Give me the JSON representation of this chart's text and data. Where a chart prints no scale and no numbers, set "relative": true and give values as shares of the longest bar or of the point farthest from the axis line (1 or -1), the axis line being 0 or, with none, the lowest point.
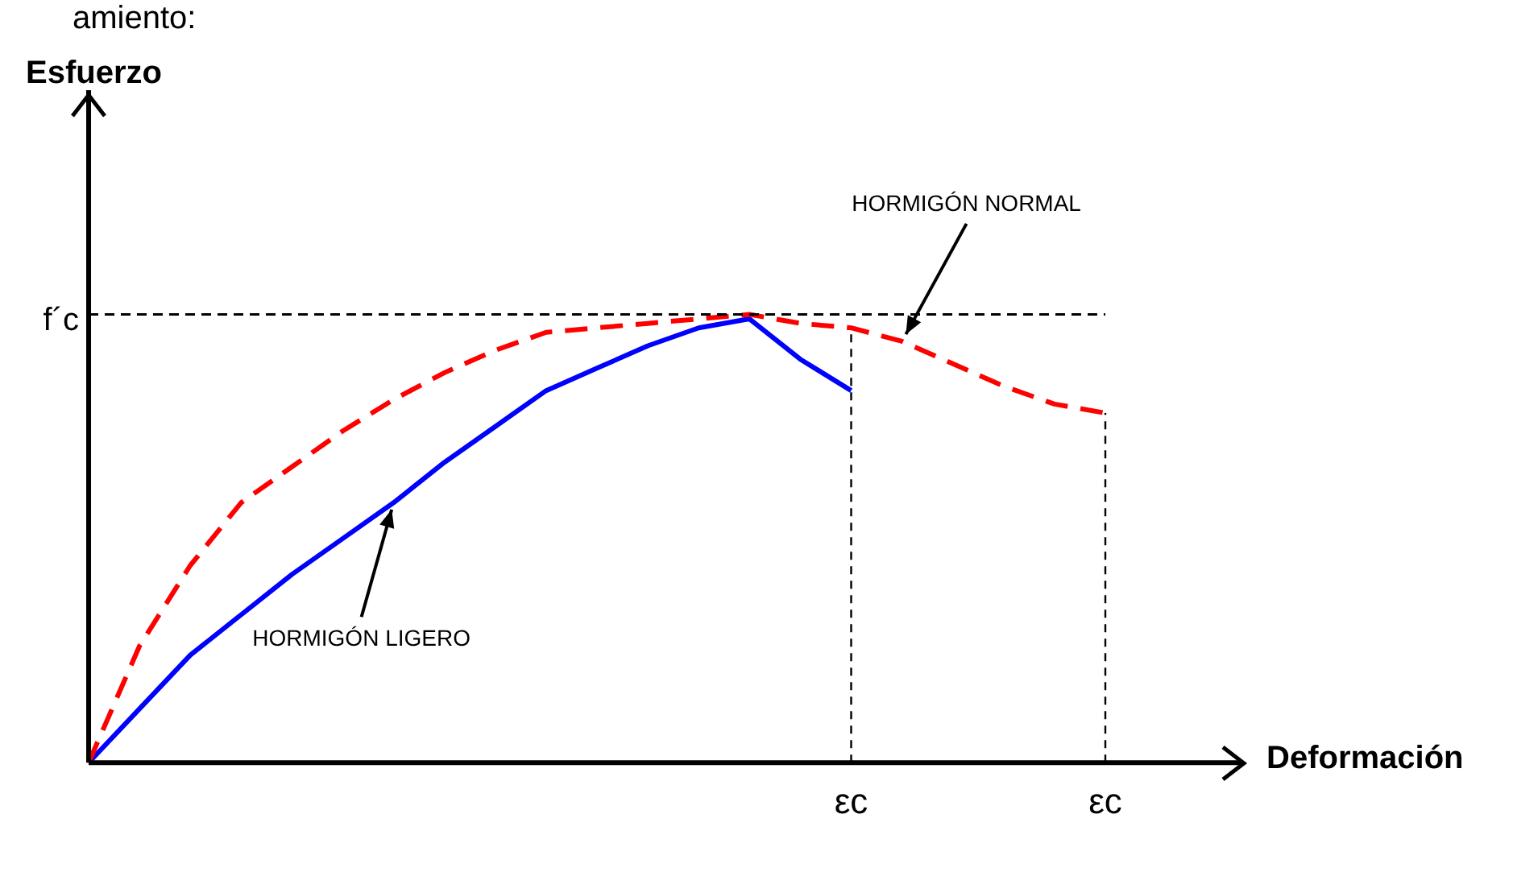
{
  "chart_data": {
    "type": "line",
    "relative": true,
    "xlabel": "Deformación",
    "annotations": [
      "amiento:",
      "Esfuerzo"
    ],
    "categories": [
      null,
      null,
      null,
      null,
      null,
      null,
      null,
      null,
      null,
      null,
      null,
      null,
      null,
      null,
      null,
      "εc",
      null,
      null,
      null,
      null,
      "εc"
    ],
    "grid": "x",
    "legend": false,
    "marker": "none",
    "series": [
      {
        "name": "HORMIGÓN NORMAL",
        "color": "#ff0000",
        "line_style": "dashed",
        "values": [
          0,
          0.26,
          0.44,
          0.58,
          0.66,
          0.74,
          0.81,
          0.87,
          0.92,
          0.96,
          0.97,
          0.98,
          0.99,
          1,
          0.98,
          0.97,
          0.94,
          0.89,
          0.84,
          0.8,
          0.78
        ]
      },
      {
        "name": "HORMIGÓN LIGERO",
        "color": "#0000ff",
        "line_style": "solid",
        "values": [
          0,
          0.12,
          0.24,
          0.33,
          0.42,
          0.5,
          0.58,
          0.67,
          0.75,
          0.83,
          0.88,
          0.93,
          0.97,
          0.99,
          0.9,
          0.83,
          null,
          null,
          null,
          null,
          null
        ]
      }
    ],
    "ref_lines": [
      {
        "axis": "y",
        "value": 1,
        "label": "f´c",
        "color": "#000000",
        "line_style": "dashed"
      }
    ]
  }
}
